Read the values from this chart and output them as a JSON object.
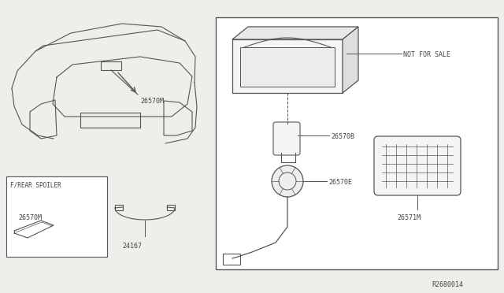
{
  "bg_color": "#f0eeeb",
  "line_color": "#555555",
  "text_color": "#444444",
  "box_color": "#ffffff",
  "parts": {
    "26570M": "26570M",
    "26570B": "26570B",
    "26570E": "26570E",
    "26571M": "26571M",
    "24167": "24167"
  },
  "labels": {
    "not_for_sale": "NOT FOR SALE",
    "f_rear_spoiler": "F/REAR SPOILER",
    "ref_code": "R2680014"
  }
}
